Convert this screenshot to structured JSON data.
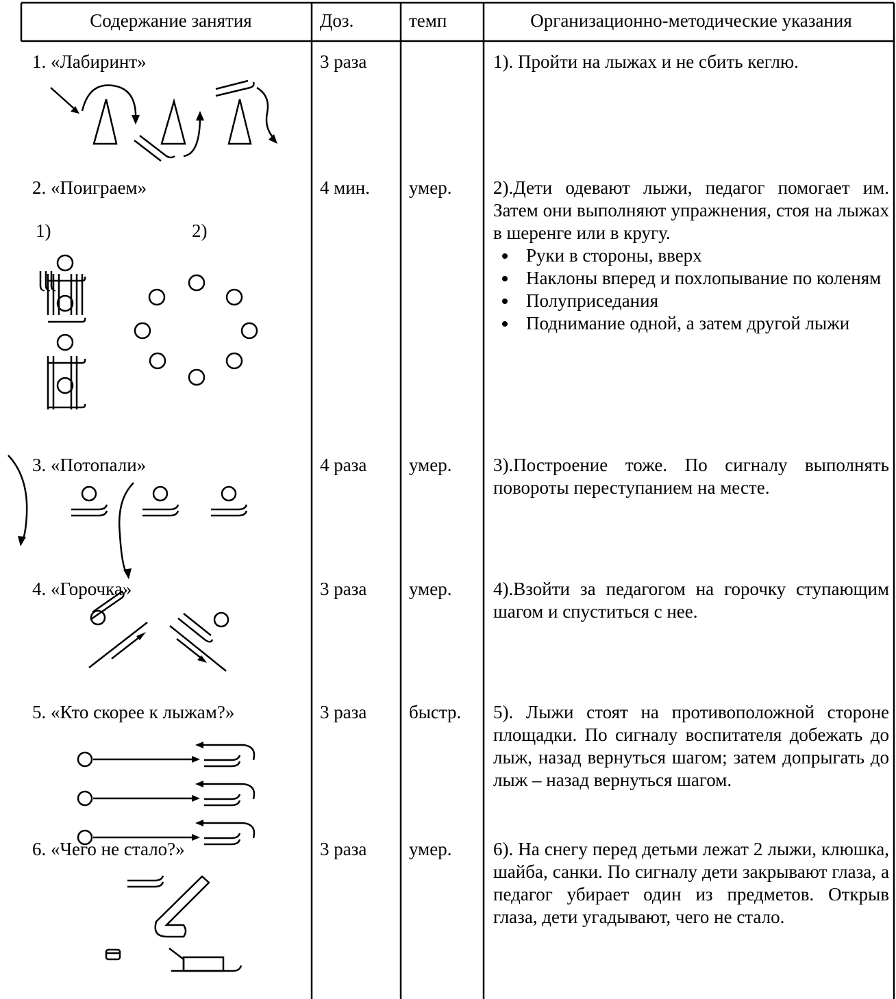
{
  "header": [
    "Содержание занятия",
    "Доз.",
    "темп",
    "Организационно-методические указания"
  ],
  "rows": [
    {
      "name": "1. «Лабиринт»",
      "dose": "3 раза",
      "instructions": [
        "1). Пройти на лыжах и не сбить кеглю."
      ]
    },
    {
      "name": "2. «Поиграем»",
      "dose": "4 мин.",
      "tempo": "умер.",
      "diagram_labels": [
        "1)",
        "2)"
      ],
      "instructions": [
        "2).Дети одевают лыжи, педагог помогает им. Затем они выполняют упражнения, стоя на лыжах в шеренге или в кругу."
      ],
      "bullets": [
        "Руки в стороны, вверх",
        "Наклоны вперед и похлопывание по коленям",
        "Полуприседания",
        "Поднимание одной, а затем другой лыжи"
      ]
    },
    {
      "name": "3. «Потопали»",
      "dose": "4 раза",
      "tempo": "умер.",
      "instructions": [
        "3).Построение тоже. По сигналу выполнять повороты переступанием на месте."
      ]
    },
    {
      "name": "4. «Горочка»",
      "dose": "3 раза",
      "tempo": "умер.",
      "instructions": [
        "4).Взойти за педагогом на горочку ступающим шагом и спуститься с нее."
      ]
    },
    {
      "name": "5. «Кто скорее к лыжам?»",
      "dose": "3 раза",
      "tempo": "быстр.",
      "instructions": [
        "5). Лыжи стоят на противоположной стороне площадки. По сигналу воспитателя добежать до лыж, назад вернуться шагом; затем допрыгать до лыж – назад вернуться шагом."
      ]
    },
    {
      "name": "6. «Чего не стало?»",
      "dose": "3 раза",
      "tempo": "умер.",
      "instructions": [
        "6). На снегу перед детьми лежат 2 лыжи, клюшка, шайба, санки. По сигналу дети закрывают глаза, а педагог убирает один из предметов. Открыв глаза, дети угадывают, чего не стало."
      ]
    }
  ]
}
